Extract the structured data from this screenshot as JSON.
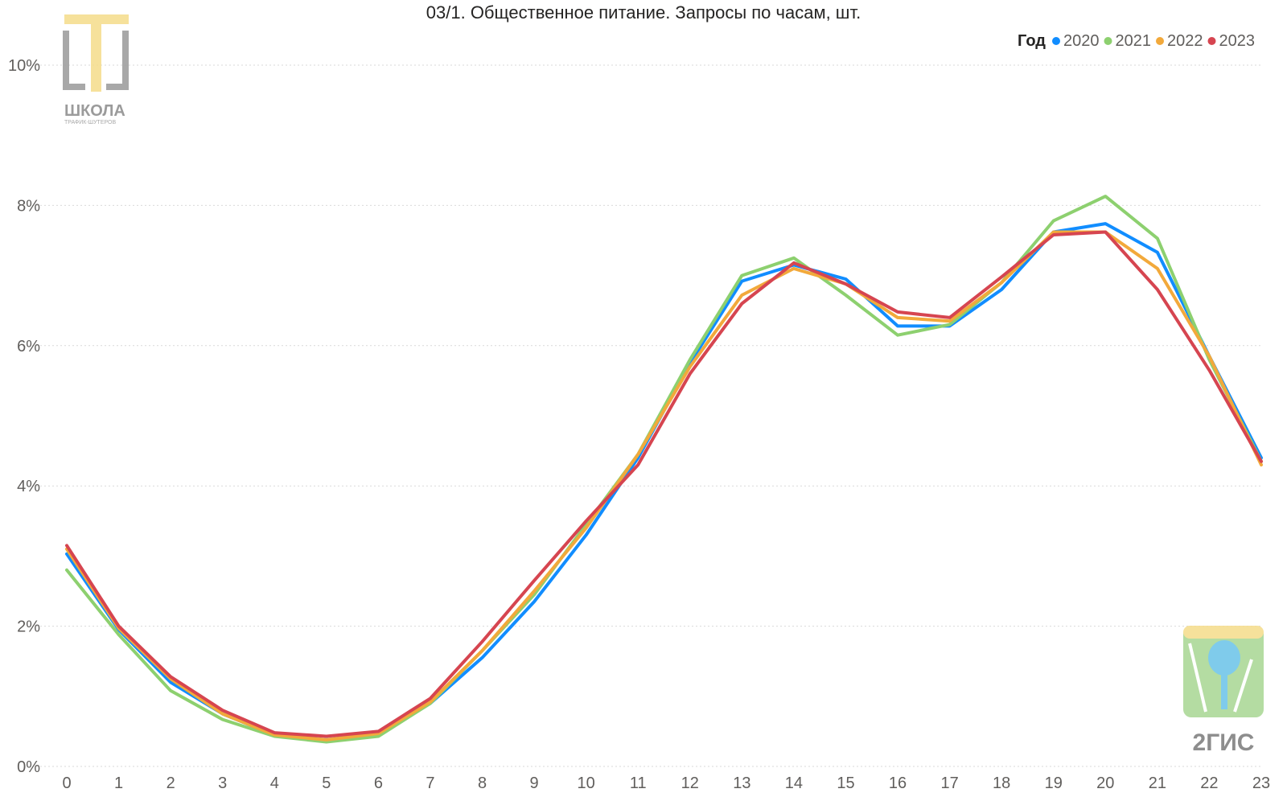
{
  "chart_data": {
    "type": "line",
    "title": "03/1. Общественное питание. Запросы по часам, шт.",
    "x": [
      0,
      1,
      2,
      3,
      4,
      5,
      6,
      7,
      8,
      9,
      10,
      11,
      12,
      13,
      14,
      15,
      16,
      17,
      18,
      19,
      20,
      21,
      22,
      23
    ],
    "ylim": [
      0,
      10
    ],
    "yticks": [
      {
        "value": 0,
        "label": "0%"
      },
      {
        "value": 2,
        "label": "2%"
      },
      {
        "value": 4,
        "label": "4%"
      },
      {
        "value": 6,
        "label": "6%"
      },
      {
        "value": 8,
        "label": "8%"
      },
      {
        "value": 10,
        "label": "10%"
      }
    ],
    "grid": true,
    "legend": {
      "title": "Год",
      "position": "top-right"
    },
    "series": [
      {
        "name": "2020",
        "color": "#118DFF",
        "values": [
          3.03,
          1.95,
          1.2,
          0.75,
          0.45,
          0.38,
          0.47,
          0.9,
          1.55,
          2.35,
          3.3,
          4.4,
          5.75,
          6.92,
          7.15,
          6.95,
          6.28,
          6.28,
          6.8,
          7.62,
          7.74,
          7.33,
          5.85,
          4.4
        ]
      },
      {
        "name": "2021",
        "color": "#8DD06F",
        "values": [
          2.8,
          1.88,
          1.08,
          0.67,
          0.43,
          0.35,
          0.43,
          0.9,
          1.65,
          2.45,
          3.45,
          4.45,
          5.8,
          7.0,
          7.25,
          6.72,
          6.15,
          6.3,
          6.9,
          7.78,
          8.13,
          7.53,
          5.8,
          4.35
        ]
      },
      {
        "name": "2022",
        "color": "#F2A93B",
        "values": [
          3.1,
          1.97,
          1.25,
          0.75,
          0.45,
          0.38,
          0.47,
          0.92,
          1.65,
          2.5,
          3.4,
          4.45,
          5.7,
          6.72,
          7.1,
          6.88,
          6.4,
          6.35,
          6.9,
          7.62,
          7.62,
          7.1,
          5.85,
          4.3
        ]
      },
      {
        "name": "2023",
        "color": "#D64550",
        "values": [
          3.15,
          2.0,
          1.28,
          0.8,
          0.48,
          0.43,
          0.5,
          0.97,
          1.78,
          2.65,
          3.5,
          4.3,
          5.6,
          6.6,
          7.18,
          6.88,
          6.48,
          6.4,
          6.98,
          7.58,
          7.62,
          6.8,
          5.65,
          4.35
        ]
      }
    ]
  },
  "logos": {
    "school": {
      "line1": "ШКОЛА",
      "line2": "ТРАФИК-ШУТЕРОВ"
    },
    "gis": {
      "label": "2ГИС"
    }
  }
}
